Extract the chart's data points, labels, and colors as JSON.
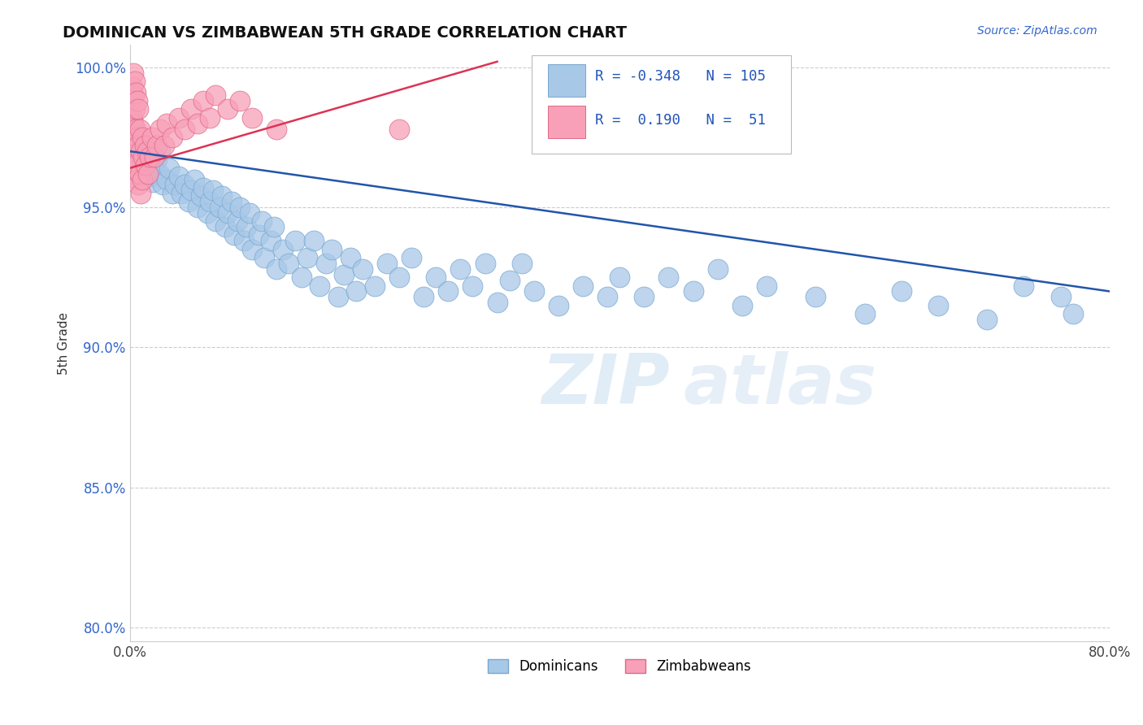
{
  "title": "DOMINICAN VS ZIMBABWEAN 5TH GRADE CORRELATION CHART",
  "source_text": "Source: ZipAtlas.com",
  "ylabel": "5th Grade",
  "xlim": [
    0.0,
    0.8
  ],
  "ylim": [
    0.795,
    1.008
  ],
  "xticks": [
    0.0,
    0.1,
    0.2,
    0.3,
    0.4,
    0.5,
    0.6,
    0.7,
    0.8
  ],
  "xticklabels": [
    "0.0%",
    "",
    "",
    "",
    "",
    "",
    "",
    "",
    "80.0%"
  ],
  "yticks": [
    0.8,
    0.85,
    0.9,
    0.95,
    1.0
  ],
  "yticklabels": [
    "80.0%",
    "85.0%",
    "90.0%",
    "95.0%",
    "100.0%"
  ],
  "blue_color": "#a8c8e8",
  "blue_edge": "#78a8d0",
  "pink_color": "#f8a0b8",
  "pink_edge": "#e06888",
  "blue_line_color": "#2255aa",
  "pink_line_color": "#dd3355",
  "grid_color": "#cccccc",
  "legend_blue_label": "Dominicans",
  "legend_pink_label": "Zimbabweans",
  "blue_scatter_x": [
    0.001,
    0.002,
    0.003,
    0.004,
    0.005,
    0.006,
    0.007,
    0.008,
    0.009,
    0.01,
    0.011,
    0.012,
    0.013,
    0.014,
    0.015,
    0.016,
    0.017,
    0.018,
    0.019,
    0.02,
    0.022,
    0.024,
    0.025,
    0.027,
    0.03,
    0.032,
    0.035,
    0.037,
    0.04,
    0.042,
    0.045,
    0.048,
    0.05,
    0.053,
    0.055,
    0.058,
    0.06,
    0.063,
    0.065,
    0.068,
    0.07,
    0.073,
    0.075,
    0.078,
    0.08,
    0.083,
    0.085,
    0.088,
    0.09,
    0.093,
    0.095,
    0.098,
    0.1,
    0.105,
    0.108,
    0.11,
    0.115,
    0.118,
    0.12,
    0.125,
    0.13,
    0.135,
    0.14,
    0.145,
    0.15,
    0.155,
    0.16,
    0.165,
    0.17,
    0.175,
    0.18,
    0.185,
    0.19,
    0.2,
    0.21,
    0.22,
    0.23,
    0.24,
    0.25,
    0.26,
    0.27,
    0.28,
    0.29,
    0.3,
    0.31,
    0.32,
    0.33,
    0.35,
    0.37,
    0.39,
    0.4,
    0.42,
    0.44,
    0.46,
    0.48,
    0.5,
    0.52,
    0.56,
    0.6,
    0.63,
    0.66,
    0.7,
    0.73,
    0.76,
    0.77
  ],
  "blue_scatter_y": [
    0.98,
    0.975,
    0.978,
    0.972,
    0.976,
    0.97,
    0.974,
    0.968,
    0.973,
    0.966,
    0.972,
    0.968,
    0.965,
    0.97,
    0.963,
    0.967,
    0.961,
    0.965,
    0.959,
    0.963,
    0.967,
    0.962,
    0.97,
    0.958,
    0.96,
    0.964,
    0.955,
    0.958,
    0.961,
    0.955,
    0.958,
    0.952,
    0.956,
    0.96,
    0.95,
    0.954,
    0.957,
    0.948,
    0.952,
    0.956,
    0.945,
    0.95,
    0.954,
    0.943,
    0.948,
    0.952,
    0.94,
    0.945,
    0.95,
    0.938,
    0.943,
    0.948,
    0.935,
    0.94,
    0.945,
    0.932,
    0.938,
    0.943,
    0.928,
    0.935,
    0.93,
    0.938,
    0.925,
    0.932,
    0.938,
    0.922,
    0.93,
    0.935,
    0.918,
    0.926,
    0.932,
    0.92,
    0.928,
    0.922,
    0.93,
    0.925,
    0.932,
    0.918,
    0.925,
    0.92,
    0.928,
    0.922,
    0.93,
    0.916,
    0.924,
    0.93,
    0.92,
    0.915,
    0.922,
    0.918,
    0.925,
    0.918,
    0.925,
    0.92,
    0.928,
    0.915,
    0.922,
    0.918,
    0.912,
    0.92,
    0.915,
    0.91,
    0.922,
    0.918,
    0.912
  ],
  "pink_scatter_x": [
    0.001,
    0.001,
    0.002,
    0.002,
    0.002,
    0.003,
    0.003,
    0.003,
    0.003,
    0.004,
    0.004,
    0.004,
    0.005,
    0.005,
    0.005,
    0.006,
    0.006,
    0.006,
    0.007,
    0.007,
    0.007,
    0.008,
    0.008,
    0.009,
    0.009,
    0.01,
    0.01,
    0.011,
    0.012,
    0.013,
    0.014,
    0.015,
    0.016,
    0.018,
    0.02,
    0.022,
    0.025,
    0.028,
    0.03,
    0.035,
    0.04,
    0.045,
    0.05,
    0.055,
    0.06,
    0.065,
    0.07,
    0.08,
    0.09,
    0.1,
    0.12
  ],
  "pink_scatter_x_outlier": [
    0.22
  ],
  "pink_scatter_y_outlier": [
    0.978
  ],
  "pink_scatter_y": [
    0.975,
    0.988,
    0.97,
    0.982,
    0.993,
    0.968,
    0.98,
    0.99,
    0.998,
    0.972,
    0.985,
    0.995,
    0.965,
    0.978,
    0.991,
    0.96,
    0.975,
    0.988,
    0.958,
    0.972,
    0.985,
    0.962,
    0.978,
    0.955,
    0.97,
    0.96,
    0.975,
    0.968,
    0.972,
    0.965,
    0.97,
    0.962,
    0.968,
    0.975,
    0.968,
    0.972,
    0.978,
    0.972,
    0.98,
    0.975,
    0.982,
    0.978,
    0.985,
    0.98,
    0.988,
    0.982,
    0.99,
    0.985,
    0.988,
    0.982,
    0.978
  ],
  "blue_trendline_x": [
    0.0,
    0.8
  ],
  "blue_trendline_y": [
    0.97,
    0.92
  ],
  "pink_trendline_x": [
    0.0,
    0.3
  ],
  "pink_trendline_y": [
    0.964,
    1.002
  ]
}
